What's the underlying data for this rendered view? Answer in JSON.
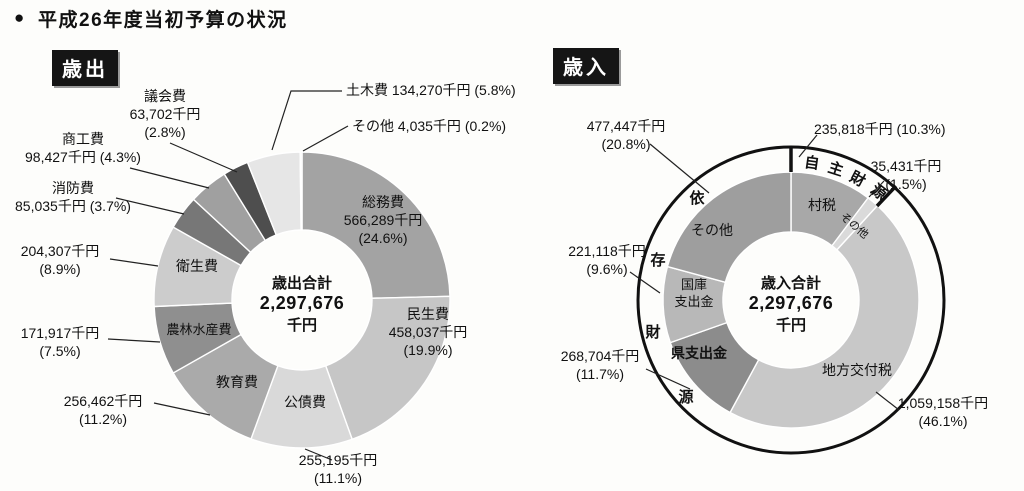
{
  "page": {
    "title": "平成26年度当初予算の状況",
    "bullet": "●"
  },
  "sections": {
    "expenditure": "歳出",
    "revenue": "歳入"
  },
  "chart_data": [
    {
      "type": "pie",
      "variant": "donut",
      "name": "歳出",
      "unit": "千円",
      "total_value": 2297676,
      "total_label": {
        "line1": "歳出合計",
        "line2": "2,297,676",
        "line3": "千円"
      },
      "slices": [
        {
          "name": "総務費",
          "value": 566289,
          "pct": 24.6,
          "value_label": "566,289千円",
          "pct_label": "(24.6%)",
          "color": "#a3a3a3"
        },
        {
          "name": "民生費",
          "value": 458037,
          "pct": 19.9,
          "value_label": "458,037千円",
          "pct_label": "(19.9%)",
          "color": "#c6c6c6"
        },
        {
          "name": "公債費",
          "value": 255195,
          "pct": 11.1,
          "value_label": "255,195千円",
          "pct_label": "(11.1%)",
          "color": "#d9d9d9"
        },
        {
          "name": "教育費",
          "value": 256462,
          "pct": 11.2,
          "value_label": "256,462千円",
          "pct_label": "(11.2%)",
          "color": "#aaaaaa"
        },
        {
          "name": "農林水産費",
          "value": 171917,
          "pct": 7.5,
          "value_label": "171,917千円",
          "pct_label": "(7.5%)",
          "color": "#8f8f8f"
        },
        {
          "name": "衛生費",
          "value": 204307,
          "pct": 8.9,
          "value_label": "204,307千円",
          "pct_label": "(8.9%)",
          "color": "#cccccc"
        },
        {
          "name": "消防費",
          "value": 85035,
          "pct": 3.7,
          "value_label": "85,035千円",
          "pct_label": "(3.7%)",
          "color": "#777777"
        },
        {
          "name": "商工費",
          "value": 98427,
          "pct": 4.3,
          "value_label": "98,427千円",
          "pct_label": "(4.3%)",
          "color": "#a0a0a0"
        },
        {
          "name": "議会費",
          "value": 63702,
          "pct": 2.8,
          "value_label": "63,702千円",
          "pct_label": "(2.8%)",
          "color": "#4e4e4e"
        },
        {
          "name": "土木費",
          "value": 134270,
          "pct": 5.8,
          "value_label": "134,270千円",
          "pct_label": "(5.8%)",
          "color": "#e6e6e6"
        },
        {
          "name": "その他",
          "value": 4035,
          "pct": 0.2,
          "value_label": "4,035千円",
          "pct_label": "(0.2%)",
          "color": "#f4f4f4"
        }
      ]
    },
    {
      "type": "pie",
      "variant": "donut-with-outer-ring",
      "name": "歳入",
      "unit": "千円",
      "total_value": 2297676,
      "total_label": {
        "line1": "歳入合計",
        "line2": "2,297,676",
        "line3": "千円"
      },
      "ring_groups": [
        {
          "name": "自主財源",
          "chars": [
            "自",
            "主",
            "財",
            "源"
          ],
          "pct": 11.8
        },
        {
          "name": "依存財源",
          "chars": [
            "依",
            "存",
            "財",
            "源"
          ],
          "pct": 88.2
        }
      ],
      "slices": [
        {
          "name": "村税",
          "group": "自主財源",
          "value": 235818,
          "pct": 10.3,
          "value_label": "235,818千円",
          "pct_label": "(10.3%)",
          "color": "#a8a8a8"
        },
        {
          "name": "その他",
          "group": "自主財源",
          "value": 35431,
          "pct": 1.5,
          "value_label": "35,431千円",
          "pct_label": "(1.5%)",
          "color": "#dadada"
        },
        {
          "name": "地方交付税",
          "group": "依存財源",
          "value": 1059158,
          "pct": 46.1,
          "value_label": "1,059,158千円",
          "pct_label": "(46.1%)",
          "color": "#c8c8c8"
        },
        {
          "name": "県支出金",
          "group": "依存財源",
          "value": 268704,
          "pct": 11.7,
          "value_label": "268,704千円",
          "pct_label": "(11.7%)",
          "color": "#8c8c8c"
        },
        {
          "name": "国庫支出金",
          "group": "依存財源",
          "value": 221118,
          "pct": 9.6,
          "value_label": "221,118千円",
          "pct_label": "(9.6%)",
          "color": "#b8b8b8",
          "name_lines": [
            "国庫",
            "支出金"
          ]
        },
        {
          "name": "その他",
          "group": "依存財源",
          "value": 477447,
          "pct": 20.8,
          "value_label": "477,447千円",
          "pct_label": "(20.8%)",
          "color": "#9e9e9e"
        }
      ]
    }
  ]
}
